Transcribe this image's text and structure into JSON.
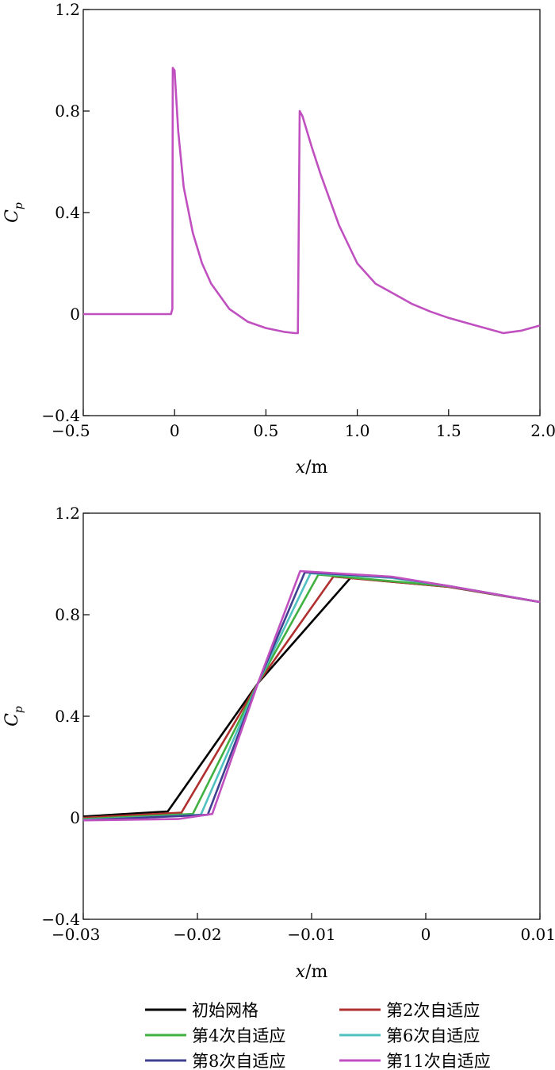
{
  "chart_data": [
    {
      "type": "line",
      "xlabel_var": "x",
      "xlabel_unit": "/m",
      "ylabel_var": "C",
      "ylabel_sub": "p",
      "xlim": [
        -0.5,
        2.0
      ],
      "ylim": [
        -0.4,
        1.2
      ],
      "xticks": [
        -0.5,
        0,
        0.5,
        1.0,
        1.5,
        2.0
      ],
      "xtick_labels": [
        "−0.5",
        "0",
        "0.5",
        "1.0",
        "1.5",
        "2.0"
      ],
      "yticks": [
        -0.4,
        0,
        0.4,
        0.8,
        1.2
      ],
      "ytick_labels": [
        "−0.4",
        "0",
        "0.4",
        "0.8",
        "1.2"
      ],
      "series": [
        {
          "name": "第11次自适应",
          "color": "#c050c0",
          "x": [
            -0.5,
            -0.02,
            -0.012,
            -0.01,
            0.0,
            0.02,
            0.05,
            0.1,
            0.15,
            0.2,
            0.3,
            0.4,
            0.5,
            0.6,
            0.66,
            0.675,
            0.685,
            0.7,
            0.75,
            0.8,
            0.9,
            1.0,
            1.1,
            1.2,
            1.3,
            1.4,
            1.5,
            1.6,
            1.7,
            1.8,
            1.9,
            2.0
          ],
          "y": [
            0,
            0,
            0.02,
            0.97,
            0.96,
            0.72,
            0.5,
            0.32,
            0.2,
            0.12,
            0.02,
            -0.03,
            -0.055,
            -0.07,
            -0.075,
            -0.075,
            0.8,
            0.78,
            0.66,
            0.55,
            0.35,
            0.2,
            0.12,
            0.08,
            0.04,
            0.01,
            -0.015,
            -0.035,
            -0.055,
            -0.075,
            -0.065,
            -0.045
          ]
        }
      ]
    },
    {
      "type": "line",
      "xlabel_var": "x",
      "xlabel_unit": "/m",
      "ylabel_var": "C",
      "ylabel_sub": "p",
      "xlim": [
        -0.03,
        0.01
      ],
      "ylim": [
        -0.4,
        1.2
      ],
      "xticks": [
        -0.03,
        -0.02,
        -0.01,
        0,
        0.01
      ],
      "xtick_labels": [
        "−0.03",
        "−0.02",
        "−0.01",
        "0",
        "0.01"
      ],
      "yticks": [
        -0.4,
        0,
        0.4,
        0.8,
        1.2
      ],
      "ytick_labels": [
        "−0.4",
        "0",
        "0.4",
        "0.8",
        "1.2"
      ],
      "series": [
        {
          "name": "初始网格",
          "color": "#000000",
          "x": [
            -0.03,
            -0.0226,
            -0.0147,
            -0.0066,
            0.002,
            0.01
          ],
          "y": [
            0.005,
            0.025,
            0.53,
            0.945,
            0.91,
            0.85
          ]
        },
        {
          "name": "第2次自适应",
          "color": "#b03030",
          "x": [
            -0.03,
            -0.0214,
            -0.0147,
            -0.0081,
            0.002,
            0.01
          ],
          "y": [
            0.0,
            0.02,
            0.53,
            0.95,
            0.91,
            0.85
          ]
        },
        {
          "name": "第4次自适应",
          "color": "#40b040",
          "x": [
            -0.03,
            -0.0204,
            -0.0147,
            -0.0094,
            0.002,
            0.01
          ],
          "y": [
            -0.005,
            0.015,
            0.53,
            0.958,
            0.912,
            0.85
          ]
        },
        {
          "name": "第6次自适应",
          "color": "#50c0c0",
          "x": [
            -0.03,
            -0.0197,
            -0.0147,
            -0.0101,
            -0.003,
            0.002,
            0.01
          ],
          "y": [
            -0.008,
            0.012,
            0.53,
            0.963,
            0.945,
            0.913,
            0.85
          ]
        },
        {
          "name": "第8次自适应",
          "color": "#404090",
          "x": [
            -0.03,
            -0.0191,
            -0.0147,
            -0.0106,
            -0.003,
            0.002,
            0.01
          ],
          "y": [
            -0.01,
            0.012,
            0.53,
            0.967,
            0.948,
            0.913,
            0.85
          ]
        },
        {
          "name": "第11次自适应",
          "color": "#c050c0",
          "x": [
            -0.03,
            -0.0217,
            -0.0187,
            -0.0147,
            -0.011,
            -0.003,
            0.002,
            0.01
          ],
          "y": [
            -0.01,
            -0.005,
            0.015,
            0.53,
            0.972,
            0.95,
            0.913,
            0.85
          ]
        }
      ]
    }
  ],
  "legend": {
    "items": [
      {
        "label": "初始网格",
        "color": "#000000"
      },
      {
        "label": "第2次自适应",
        "color": "#b03030"
      },
      {
        "label": "第4次自适应",
        "color": "#40b040"
      },
      {
        "label": "第6次自适应",
        "color": "#50c0c0"
      },
      {
        "label": "第8次自适应",
        "color": "#404090"
      },
      {
        "label": "第11次自适应",
        "color": "#c050c0"
      }
    ]
  }
}
